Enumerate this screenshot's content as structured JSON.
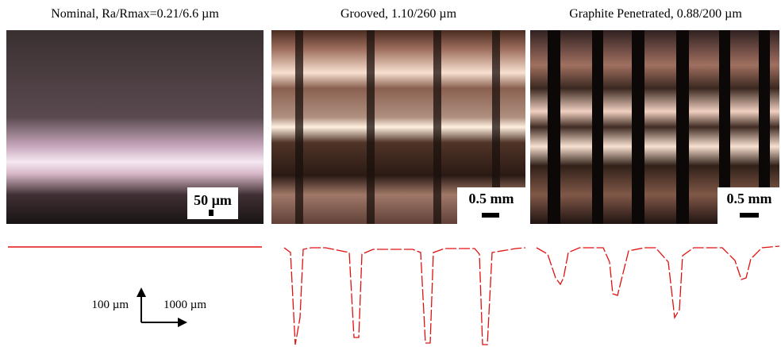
{
  "panels": [
    {
      "title": "Nominal, Ra/Rmax=0.21/6.6 µm",
      "scale_bar": "50 µm"
    },
    {
      "title": "Grooved, 1.10/260 µm",
      "scale_bar": "0.5 mm"
    },
    {
      "title": "Graphite Penetrated, 0.88/200 µm",
      "scale_bar": "0.5 mm"
    }
  ],
  "axes": {
    "vertical": "100 µm",
    "horizontal": "1000 µm"
  }
}
